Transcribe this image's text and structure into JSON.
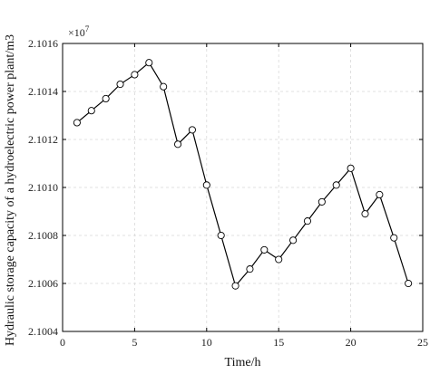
{
  "chart_data": {
    "type": "line",
    "xlabel": "Time/h",
    "ylabel": "Hydraulic storage capacity of a hydroelectric power plant/m3",
    "y_multiplier": "×10",
    "y_multiplier_exponent": "7",
    "xlim": [
      0,
      25
    ],
    "ylim": [
      2.1004,
      2.1016
    ],
    "x_ticks": [
      0,
      5,
      10,
      15,
      20,
      25
    ],
    "y_ticks": [
      2.1004,
      2.1006,
      2.1008,
      2.101,
      2.1012,
      2.1014,
      2.1016
    ],
    "x_tick_labels": [
      "0",
      "5",
      "10",
      "15",
      "20",
      "25"
    ],
    "y_tick_labels": [
      "2.1004",
      "2.1006",
      "2.1008",
      "2.1010",
      "2.1012",
      "2.1014",
      "2.1016"
    ],
    "grid": true,
    "marker": "open-circle",
    "series": [
      {
        "x": [
          1,
          2,
          3,
          4,
          5,
          6,
          7,
          8,
          9,
          10,
          11,
          12,
          13,
          14,
          15,
          16,
          17,
          18,
          19,
          20,
          21,
          22,
          23,
          24
        ],
        "values": [
          2.10127,
          2.10132,
          2.10137,
          2.10143,
          2.10147,
          2.10152,
          2.10142,
          2.10118,
          2.10124,
          2.10101,
          2.1008,
          2.10059,
          2.10066,
          2.10074,
          2.1007,
          2.10078,
          2.10086,
          2.10094,
          2.10101,
          2.10108,
          2.10089,
          2.10097,
          2.10079,
          2.1006
        ]
      }
    ]
  }
}
